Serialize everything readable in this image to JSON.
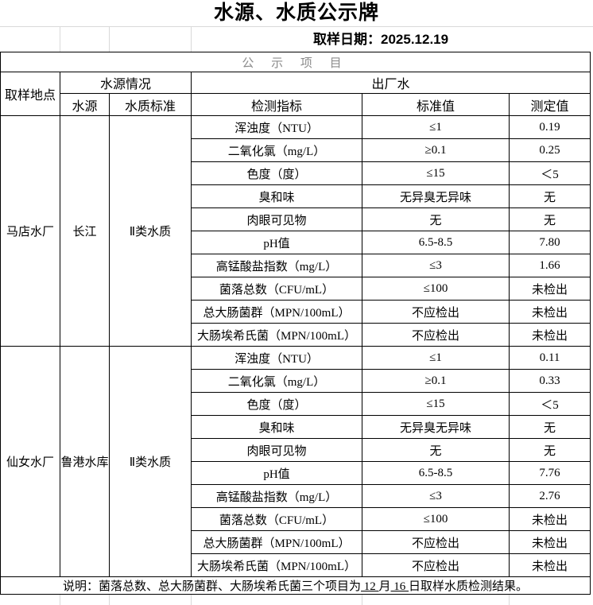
{
  "title": "水源、水质公示牌",
  "sampling_date": "取样日期：2025.12.19",
  "project_header": "公 示 项 目",
  "columns": {
    "location": "取样地点",
    "source_group": "水源情况",
    "source": "水源",
    "quality_standard": "水质标准",
    "outflow_group": "出厂水",
    "indicator": "检测指标",
    "standard_value": "标准值",
    "measured_value": "测定值"
  },
  "plants": [
    {
      "location": "马店水厂",
      "source": "长江",
      "quality_standard": "Ⅱ类水质",
      "rows": [
        {
          "indicator": "浑浊度（NTU）",
          "standard": "≤1",
          "measured": "0.19"
        },
        {
          "indicator": "二氧化氯（mg/L）",
          "standard": "≥0.1",
          "measured": "0.25"
        },
        {
          "indicator": "色度（度）",
          "standard": "≤15",
          "measured": "＜5"
        },
        {
          "indicator": "臭和味",
          "standard": "无异臭无异味",
          "measured": "无"
        },
        {
          "indicator": "肉眼可见物",
          "standard": "无",
          "measured": "无"
        },
        {
          "indicator": "pH值",
          "standard": "6.5-8.5",
          "measured": "7.80"
        },
        {
          "indicator": "高锰酸盐指数（mg/L）",
          "standard": "≤3",
          "measured": "1.66"
        },
        {
          "indicator": "菌落总数（CFU/mL）",
          "standard": "≤100",
          "measured": "未检出"
        },
        {
          "indicator": "总大肠菌群（MPN/100mL）",
          "standard": "不应检出",
          "measured": "未检出"
        },
        {
          "indicator": "大肠埃希氏菌（MPN/100mL）",
          "standard": "不应检出",
          "measured": "未检出"
        }
      ]
    },
    {
      "location": "仙女水厂",
      "source": "鲁港水库",
      "quality_standard": "Ⅱ类水质",
      "rows": [
        {
          "indicator": "浑浊度（NTU）",
          "standard": "≤1",
          "measured": "0.11"
        },
        {
          "indicator": "二氧化氯（mg/L）",
          "standard": "≥0.1",
          "measured": "0.33"
        },
        {
          "indicator": "色度（度）",
          "standard": "≤15",
          "measured": "＜5"
        },
        {
          "indicator": "臭和味",
          "standard": "无异臭无异味",
          "measured": "无"
        },
        {
          "indicator": "肉眼可见物",
          "standard": "无",
          "measured": "无"
        },
        {
          "indicator": "pH值",
          "standard": "6.5-8.5",
          "measured": "7.76"
        },
        {
          "indicator": "高锰酸盐指数（mg/L）",
          "standard": "≤3",
          "measured": "2.76"
        },
        {
          "indicator": "菌落总数（CFU/mL）",
          "standard": "≤100",
          "measured": "未检出"
        },
        {
          "indicator": "总大肠菌群（MPN/100mL）",
          "standard": "不应检出",
          "measured": "未检出"
        },
        {
          "indicator": "大肠埃希氏菌（MPN/100mL）",
          "standard": "不应检出",
          "measured": "未检出"
        }
      ]
    }
  ],
  "note": {
    "prefix": "说明：菌落总数、总大肠菌群、大肠埃希氏菌三个项目为",
    "day1": " 12 ",
    "middle": "月",
    "day2": " 16 ",
    "suffix": "日取样水质检测结果。"
  },
  "colors": {
    "border": "#000000",
    "gridline": "#d9d9d9",
    "project_header_text": "#8c8c8c"
  }
}
